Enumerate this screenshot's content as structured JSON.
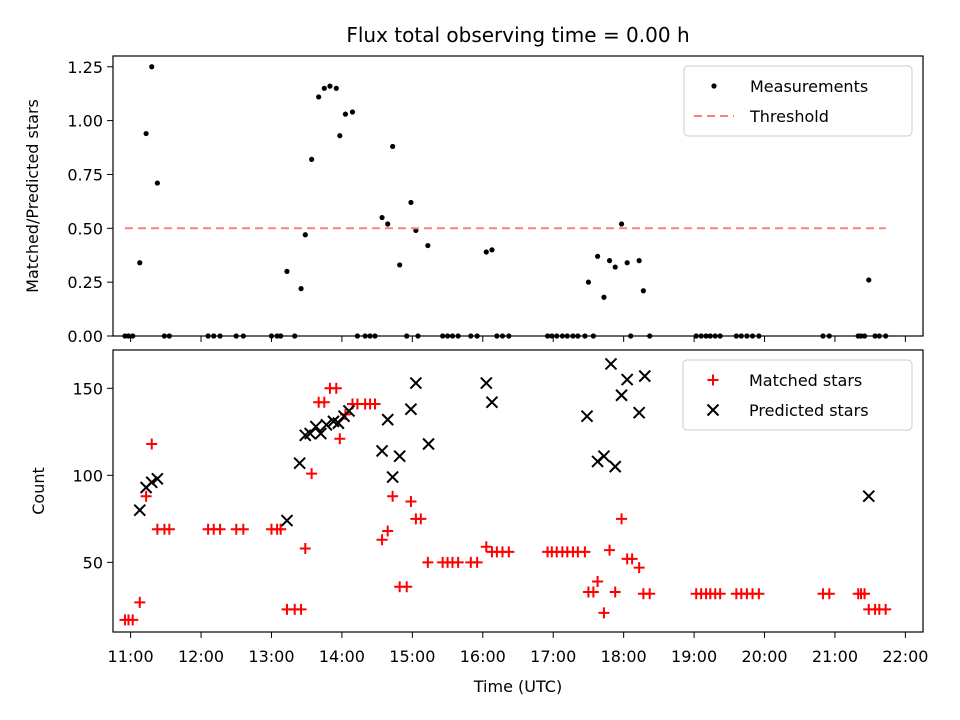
{
  "title": "Flux total observing time = 0.00 h",
  "chart_data": [
    {
      "type": "scatter",
      "ylabel": "Matched/Predicted stars",
      "ylim": [
        0,
        1.3
      ],
      "xlim_hours": [
        10.75,
        22.25
      ],
      "yticks": [
        "0.00",
        "0.25",
        "0.50",
        "0.75",
        "1.00",
        "1.25"
      ],
      "legend": "top-right",
      "series": [
        {
          "name": "Measurements",
          "color": "#000000",
          "marker": "dot",
          "points": [
            [
              10.92,
              0
            ],
            [
              10.97,
              0
            ],
            [
              11.03,
              0
            ],
            [
              11.13,
              0.34
            ],
            [
              11.22,
              0.94
            ],
            [
              11.3,
              1.25
            ],
            [
              11.38,
              0.71
            ],
            [
              11.48,
              0
            ],
            [
              11.55,
              0
            ],
            [
              12.1,
              0
            ],
            [
              12.18,
              0
            ],
            [
              12.27,
              0
            ],
            [
              12.5,
              0
            ],
            [
              12.6,
              0
            ],
            [
              13.0,
              0
            ],
            [
              13.08,
              0
            ],
            [
              13.13,
              0
            ],
            [
              13.22,
              0.3
            ],
            [
              13.33,
              0
            ],
            [
              13.42,
              0.22
            ],
            [
              13.48,
              0.47
            ],
            [
              13.57,
              0.82
            ],
            [
              13.67,
              1.11
            ],
            [
              13.75,
              1.15
            ],
            [
              13.83,
              1.16
            ],
            [
              13.92,
              1.15
            ],
            [
              13.97,
              0.93
            ],
            [
              14.05,
              1.03
            ],
            [
              14.15,
              1.04
            ],
            [
              14.22,
              0
            ],
            [
              14.33,
              0
            ],
            [
              14.4,
              0
            ],
            [
              14.47,
              0
            ],
            [
              14.57,
              0.55
            ],
            [
              14.65,
              0.52
            ],
            [
              14.72,
              0.88
            ],
            [
              14.82,
              0.33
            ],
            [
              14.92,
              0
            ],
            [
              14.98,
              0.62
            ],
            [
              15.05,
              0.49
            ],
            [
              15.08,
              0
            ],
            [
              15.22,
              0.42
            ],
            [
              15.43,
              0
            ],
            [
              15.5,
              0
            ],
            [
              15.57,
              0
            ],
            [
              15.65,
              0
            ],
            [
              15.83,
              0
            ],
            [
              15.92,
              0
            ],
            [
              16.05,
              0.39
            ],
            [
              16.13,
              0.4
            ],
            [
              16.2,
              0
            ],
            [
              16.28,
              0
            ],
            [
              16.37,
              0
            ],
            [
              16.92,
              0
            ],
            [
              16.98,
              0
            ],
            [
              17.05,
              0
            ],
            [
              17.13,
              0
            ],
            [
              17.2,
              0
            ],
            [
              17.28,
              0
            ],
            [
              17.35,
              0
            ],
            [
              17.45,
              0
            ],
            [
              17.5,
              0.25
            ],
            [
              17.57,
              0
            ],
            [
              17.63,
              0.37
            ],
            [
              17.72,
              0.18
            ],
            [
              17.8,
              0.35
            ],
            [
              17.88,
              0.32
            ],
            [
              17.97,
              0.52
            ],
            [
              18.05,
              0.34
            ],
            [
              18.1,
              0
            ],
            [
              18.22,
              0.35
            ],
            [
              18.28,
              0.21
            ],
            [
              18.37,
              0
            ],
            [
              19.03,
              0
            ],
            [
              19.1,
              0
            ],
            [
              19.17,
              0
            ],
            [
              19.23,
              0
            ],
            [
              19.3,
              0
            ],
            [
              19.37,
              0
            ],
            [
              19.6,
              0
            ],
            [
              19.67,
              0
            ],
            [
              19.75,
              0
            ],
            [
              19.83,
              0
            ],
            [
              19.92,
              0
            ],
            [
              20.83,
              0
            ],
            [
              20.92,
              0
            ],
            [
              21.33,
              0
            ],
            [
              21.37,
              0
            ],
            [
              21.42,
              0
            ],
            [
              21.48,
              0.26
            ],
            [
              21.57,
              0
            ],
            [
              21.63,
              0
            ],
            [
              21.72,
              0
            ]
          ]
        },
        {
          "name": "Threshold",
          "color": "#ff7f7f",
          "marker": "dashed-line",
          "points": [
            [
              10.92,
              0.5
            ],
            [
              21.72,
              0.5
            ]
          ]
        }
      ]
    },
    {
      "type": "scatter",
      "xlabel": "Time (UTC)",
      "ylabel": "Count",
      "ylim": [
        10,
        172
      ],
      "yticks": [
        "50",
        "100",
        "150"
      ],
      "xticks": [
        "11:00",
        "12:00",
        "13:00",
        "14:00",
        "15:00",
        "16:00",
        "17:00",
        "18:00",
        "19:00",
        "20:00",
        "21:00",
        "22:00"
      ],
      "legend": "top-right",
      "series": [
        {
          "name": "Matched stars",
          "color": "#ff0000",
          "marker": "plus",
          "points": [
            [
              10.92,
              17
            ],
            [
              10.97,
              17
            ],
            [
              11.03,
              17
            ],
            [
              11.13,
              27
            ],
            [
              11.22,
              88
            ],
            [
              11.3,
              118
            ],
            [
              11.38,
              69
            ],
            [
              11.48,
              69
            ],
            [
              11.55,
              69
            ],
            [
              12.1,
              69
            ],
            [
              12.18,
              69
            ],
            [
              12.27,
              69
            ],
            [
              12.5,
              69
            ],
            [
              12.6,
              69
            ],
            [
              13.0,
              69
            ],
            [
              13.08,
              69
            ],
            [
              13.13,
              69
            ],
            [
              13.22,
              23
            ],
            [
              13.33,
              23
            ],
            [
              13.42,
              23
            ],
            [
              13.48,
              58
            ],
            [
              13.57,
              101
            ],
            [
              13.67,
              142
            ],
            [
              13.75,
              142
            ],
            [
              13.83,
              150
            ],
            [
              13.92,
              150
            ],
            [
              13.97,
              121
            ],
            [
              14.05,
              135
            ],
            [
              14.15,
              141
            ],
            [
              14.22,
              141
            ],
            [
              14.33,
              141
            ],
            [
              14.4,
              141
            ],
            [
              14.47,
              141
            ],
            [
              14.57,
              63
            ],
            [
              14.65,
              68
            ],
            [
              14.72,
              88
            ],
            [
              14.82,
              36
            ],
            [
              14.92,
              36
            ],
            [
              14.98,
              85
            ],
            [
              15.05,
              75
            ],
            [
              15.12,
              75
            ],
            [
              15.22,
              50
            ],
            [
              15.43,
              50
            ],
            [
              15.5,
              50
            ],
            [
              15.57,
              50
            ],
            [
              15.65,
              50
            ],
            [
              15.83,
              50
            ],
            [
              15.92,
              50
            ],
            [
              16.05,
              59
            ],
            [
              16.13,
              56
            ],
            [
              16.2,
              56
            ],
            [
              16.28,
              56
            ],
            [
              16.37,
              56
            ],
            [
              16.92,
              56
            ],
            [
              16.98,
              56
            ],
            [
              17.05,
              56
            ],
            [
              17.13,
              56
            ],
            [
              17.2,
              56
            ],
            [
              17.28,
              56
            ],
            [
              17.35,
              56
            ],
            [
              17.45,
              56
            ],
            [
              17.5,
              33
            ],
            [
              17.57,
              33
            ],
            [
              17.63,
              39
            ],
            [
              17.72,
              21
            ],
            [
              17.8,
              57
            ],
            [
              17.88,
              33
            ],
            [
              17.97,
              75
            ],
            [
              18.05,
              52
            ],
            [
              18.12,
              52
            ],
            [
              18.22,
              47
            ],
            [
              18.28,
              32
            ],
            [
              18.37,
              32
            ],
            [
              19.03,
              32
            ],
            [
              19.1,
              32
            ],
            [
              19.17,
              32
            ],
            [
              19.23,
              32
            ],
            [
              19.3,
              32
            ],
            [
              19.37,
              32
            ],
            [
              19.6,
              32
            ],
            [
              19.67,
              32
            ],
            [
              19.75,
              32
            ],
            [
              19.83,
              32
            ],
            [
              19.92,
              32
            ],
            [
              20.83,
              32
            ],
            [
              20.92,
              32
            ],
            [
              21.33,
              32
            ],
            [
              21.37,
              32
            ],
            [
              21.42,
              32
            ],
            [
              21.48,
              23
            ],
            [
              21.57,
              23
            ],
            [
              21.63,
              23
            ],
            [
              21.72,
              23
            ]
          ]
        },
        {
          "name": "Predicted stars",
          "color": "#000000",
          "marker": "x",
          "points": [
            [
              11.13,
              80
            ],
            [
              11.22,
              93
            ],
            [
              11.3,
              96
            ],
            [
              11.38,
              98
            ],
            [
              13.22,
              74
            ],
            [
              13.4,
              107
            ],
            [
              13.48,
              123
            ],
            [
              13.55,
              124
            ],
            [
              13.63,
              128
            ],
            [
              13.7,
              124
            ],
            [
              13.78,
              129
            ],
            [
              13.88,
              131
            ],
            [
              13.95,
              130
            ],
            [
              14.03,
              134
            ],
            [
              14.1,
              137
            ],
            [
              14.57,
              114
            ],
            [
              14.65,
              132
            ],
            [
              14.72,
              99
            ],
            [
              14.82,
              111
            ],
            [
              14.98,
              138
            ],
            [
              15.05,
              153
            ],
            [
              15.23,
              118
            ],
            [
              16.05,
              153
            ],
            [
              16.13,
              142
            ],
            [
              17.48,
              134
            ],
            [
              17.63,
              108
            ],
            [
              17.72,
              111
            ],
            [
              17.82,
              164
            ],
            [
              17.88,
              105
            ],
            [
              17.97,
              146
            ],
            [
              18.05,
              155
            ],
            [
              18.22,
              136
            ],
            [
              18.3,
              157
            ],
            [
              21.48,
              88
            ]
          ]
        }
      ]
    }
  ]
}
